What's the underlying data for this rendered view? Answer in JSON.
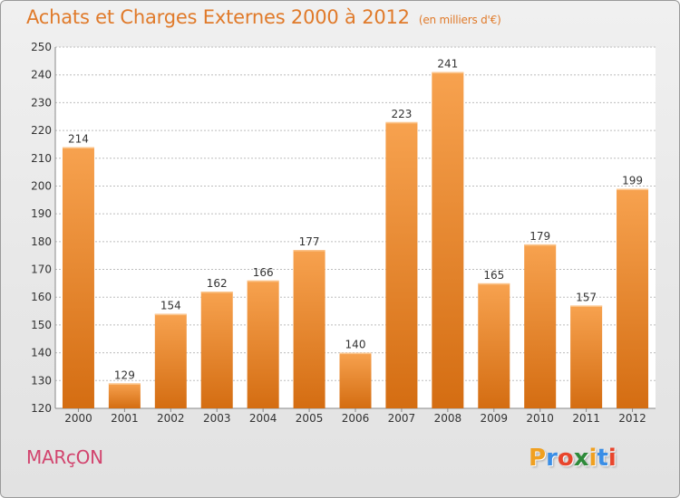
{
  "header": {
    "title": "Achats et Charges Externes 2000 à 2012",
    "unit": "(en milliers d'€)"
  },
  "footer": {
    "city": "MARçON",
    "logo_letters": [
      "P",
      "r",
      "o",
      "x",
      "i",
      "t",
      "i"
    ],
    "logo_colors": [
      "#f0a020",
      "#3a8ee6",
      "#e8452c",
      "#2e8a3a",
      "#f0a020",
      "#3a8ee6",
      "#e8452c"
    ]
  },
  "colors": {
    "bar_top": "#f7a24f",
    "bar_bottom": "#d46d12",
    "text": "#333333",
    "grid": "#bdbdbd",
    "accent": "#e07a2a",
    "city": "#d2446e"
  },
  "chart_data": {
    "type": "bar",
    "title": "Achats et Charges Externes 2000 à 2012",
    "subtitle": "(en milliers d'€)",
    "xlabel": "",
    "ylabel": "",
    "categories": [
      "2000",
      "2001",
      "2002",
      "2003",
      "2004",
      "2005",
      "2006",
      "2007",
      "2008",
      "2009",
      "2010",
      "2011",
      "2012"
    ],
    "values": [
      214,
      129,
      154,
      162,
      166,
      177,
      140,
      223,
      241,
      165,
      179,
      157,
      199
    ],
    "ylim": [
      120,
      250
    ],
    "yticks": [
      120,
      130,
      140,
      150,
      160,
      170,
      180,
      190,
      200,
      210,
      220,
      230,
      240,
      250
    ],
    "grid": true
  }
}
